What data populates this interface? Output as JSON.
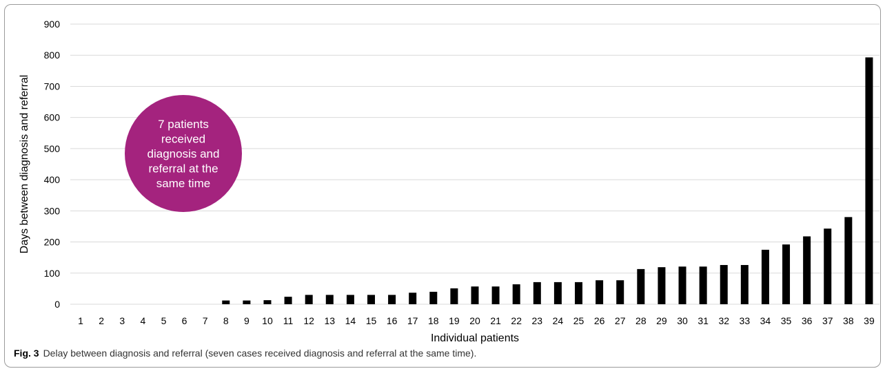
{
  "caption": {
    "label": "Fig. 3",
    "text": "Delay between diagnosis and referral (seven cases received diagnosis and referral at the same time)."
  },
  "annotation": {
    "lines": [
      "7 patients",
      "received",
      "diagnosis and",
      "referral at the",
      "same time"
    ],
    "color": "#a4237e"
  },
  "chart_data": {
    "type": "bar",
    "xlabel": "Individual patients",
    "ylabel": "Days between diagnosis and referral",
    "ylim": [
      0,
      900
    ],
    "yticks": [
      0,
      100,
      200,
      300,
      400,
      500,
      600,
      700,
      800,
      900
    ],
    "grid": true,
    "bar_color": "#000000",
    "categories": [
      "1",
      "2",
      "3",
      "4",
      "5",
      "6",
      "7",
      "8",
      "9",
      "10",
      "11",
      "12",
      "13",
      "14",
      "15",
      "16",
      "17",
      "18",
      "19",
      "20",
      "21",
      "22",
      "23",
      "24",
      "25",
      "26",
      "27",
      "28",
      "29",
      "30",
      "31",
      "32",
      "33",
      "34",
      "35",
      "36",
      "37",
      "38",
      "39"
    ],
    "values": [
      0,
      0,
      0,
      0,
      0,
      0,
      0,
      12,
      12,
      13,
      24,
      30,
      30,
      30,
      30,
      30,
      37,
      40,
      51,
      57,
      57,
      64,
      71,
      71,
      71,
      77,
      77,
      113,
      119,
      121,
      121,
      126,
      126,
      175,
      192,
      218,
      243,
      280,
      793
    ]
  }
}
